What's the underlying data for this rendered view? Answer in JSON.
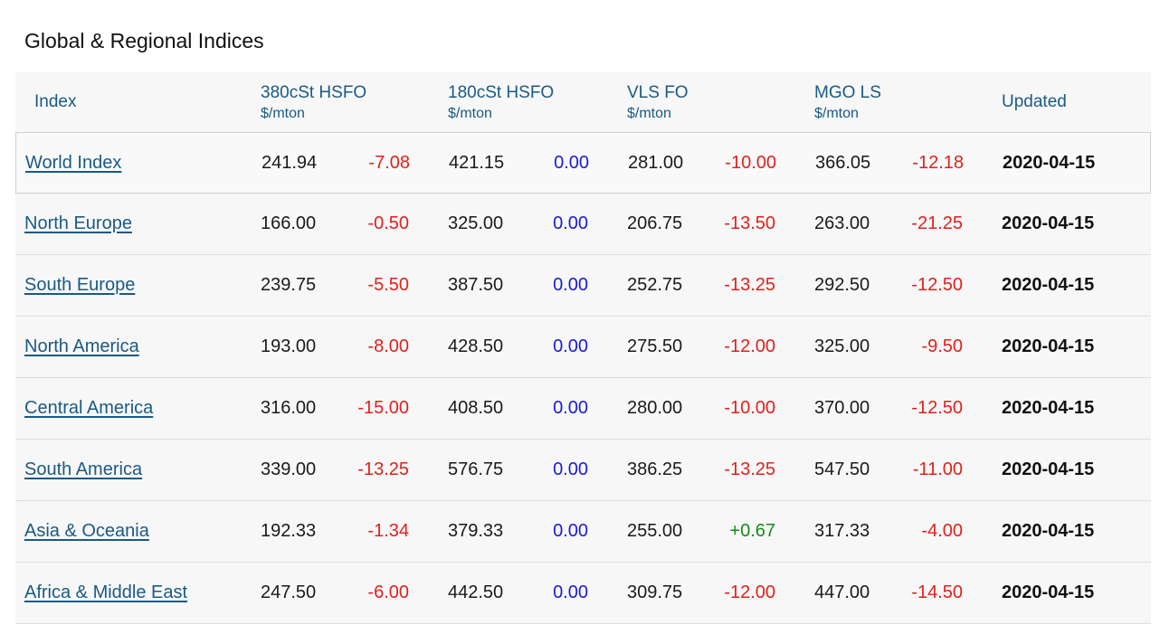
{
  "title": "Global & Regional Indices",
  "header": {
    "index": "Index",
    "c380": {
      "name": "380cSt HSFO",
      "unit": "$/mton"
    },
    "c180": {
      "name": "180cSt HSFO",
      "unit": "$/mton"
    },
    "vls": {
      "name": "VLS FO",
      "unit": "$/mton"
    },
    "mgo": {
      "name": "MGO LS",
      "unit": "$/mton"
    },
    "updated": "Updated"
  },
  "colors": {
    "link": "#1a5a83",
    "negative": "#e0211c",
    "zero": "#1b1bd6",
    "positive": "#178a17"
  },
  "rows": [
    {
      "name": "World Index",
      "p380": "241.94",
      "c380": "-7.08",
      "p180": "421.15",
      "c180": "0.00",
      "pvls": "281.00",
      "cvls": "-10.00",
      "pmgo": "366.05",
      "cmgo": "-12.18",
      "updated": "2020-04-15"
    },
    {
      "name": "North Europe",
      "p380": "166.00",
      "c380": "-0.50",
      "p180": "325.00",
      "c180": "0.00",
      "pvls": "206.75",
      "cvls": "-13.50",
      "pmgo": "263.00",
      "cmgo": "-21.25",
      "updated": "2020-04-15"
    },
    {
      "name": "South Europe",
      "p380": "239.75",
      "c380": "-5.50",
      "p180": "387.50",
      "c180": "0.00",
      "pvls": "252.75",
      "cvls": "-13.25",
      "pmgo": "292.50",
      "cmgo": "-12.50",
      "updated": "2020-04-15"
    },
    {
      "name": "North America",
      "p380": "193.00",
      "c380": "-8.00",
      "p180": "428.50",
      "c180": "0.00",
      "pvls": "275.50",
      "cvls": "-12.00",
      "pmgo": "325.00",
      "cmgo": "-9.50",
      "updated": "2020-04-15"
    },
    {
      "name": "Central America",
      "p380": "316.00",
      "c380": "-15.00",
      "p180": "408.50",
      "c180": "0.00",
      "pvls": "280.00",
      "cvls": "-10.00",
      "pmgo": "370.00",
      "cmgo": "-12.50",
      "updated": "2020-04-15"
    },
    {
      "name": "South America",
      "p380": "339.00",
      "c380": "-13.25",
      "p180": "576.75",
      "c180": "0.00",
      "pvls": "386.25",
      "cvls": "-13.25",
      "pmgo": "547.50",
      "cmgo": "-11.00",
      "updated": "2020-04-15"
    },
    {
      "name": "Asia & Oceania",
      "p380": "192.33",
      "c380": "-1.34",
      "p180": "379.33",
      "c180": "0.00",
      "pvls": "255.00",
      "cvls": "+0.67",
      "pmgo": "317.33",
      "cmgo": "-4.00",
      "updated": "2020-04-15"
    },
    {
      "name": "Africa & Middle East",
      "p380": "247.50",
      "c380": "-6.00",
      "p180": "442.50",
      "c180": "0.00",
      "pvls": "309.75",
      "cvls": "-12.00",
      "pmgo": "447.00",
      "cmgo": "-14.50",
      "updated": "2020-04-15"
    }
  ]
}
